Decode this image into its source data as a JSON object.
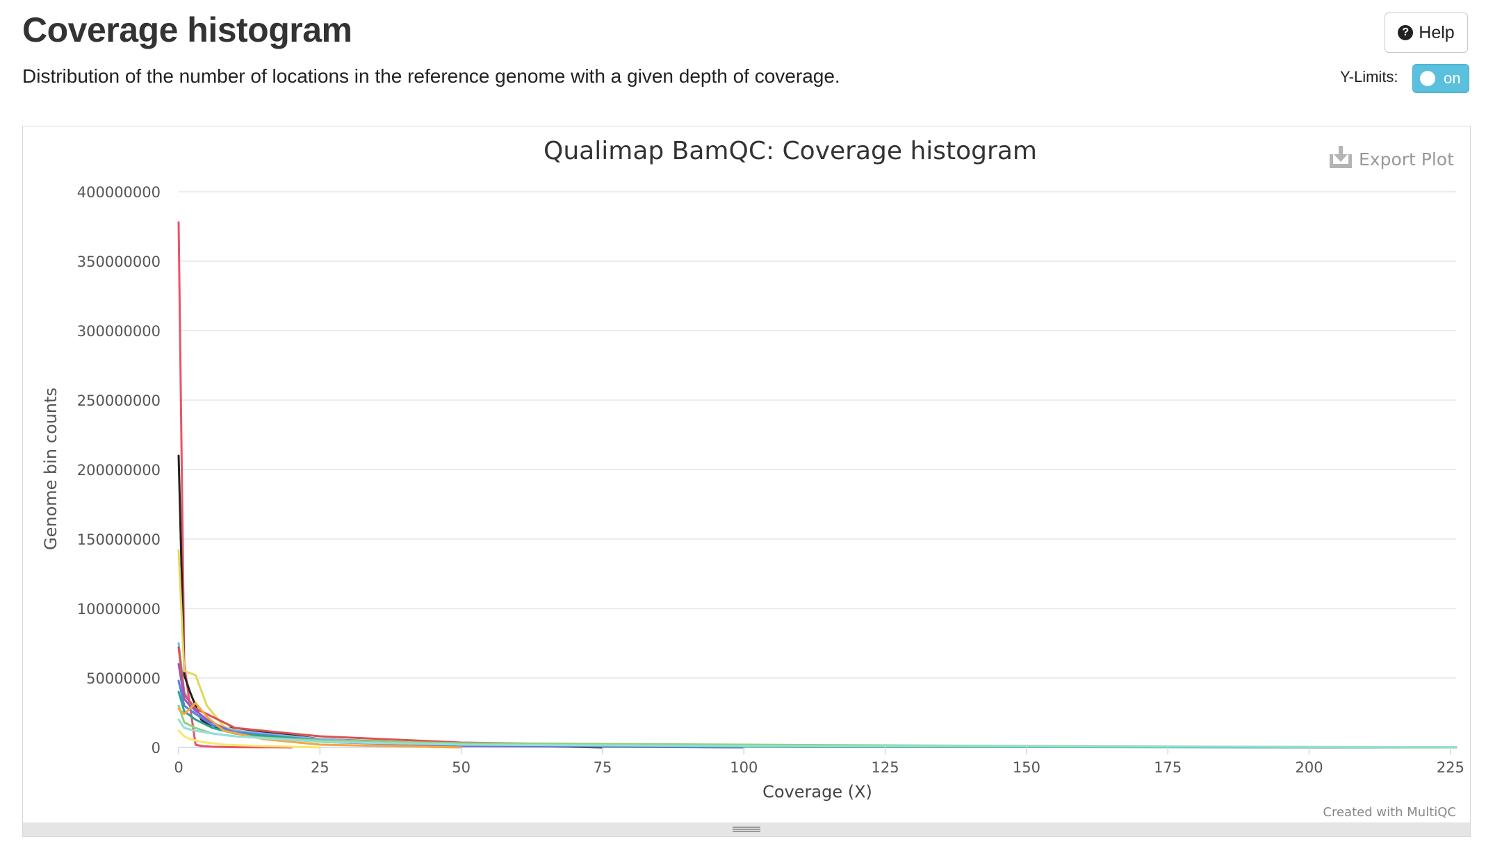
{
  "header": {
    "title": "Coverage histogram",
    "description": "Distribution of the number of locations in the reference genome with a given depth of coverage.",
    "help_label": "Help",
    "ylimits_label": "Y-Limits:",
    "ylimits_toggle": "on"
  },
  "plot": {
    "export_label": "Export Plot",
    "credit": "Created with MultiQC"
  },
  "colors": {
    "toggle": "#5bc0de",
    "grid": "#e6e6e6"
  },
  "chart_data": {
    "type": "line",
    "title": "Qualimap BamQC: Coverage histogram",
    "xlabel": "Coverage (X)",
    "ylabel": "Genome bin counts",
    "xlim": [
      0,
      226
    ],
    "ylim": [
      0,
      400000000
    ],
    "xticks": [
      0,
      25,
      50,
      75,
      100,
      125,
      150,
      175,
      200,
      225
    ],
    "yticks": [
      0,
      50000000,
      100000000,
      150000000,
      200000000,
      250000000,
      300000000,
      350000000,
      400000000
    ],
    "grid": true,
    "legend": "none",
    "series": [
      {
        "color": "#e8546a",
        "points": [
          [
            0,
            378000000
          ],
          [
            1,
            60000000
          ],
          [
            2,
            30000000
          ],
          [
            3,
            2000000
          ],
          [
            4,
            1000000
          ],
          [
            6,
            500000
          ],
          [
            10,
            200000
          ],
          [
            20,
            0
          ]
        ]
      },
      {
        "color": "#222222",
        "points": [
          [
            0,
            210000000
          ],
          [
            1,
            52000000
          ],
          [
            2,
            40000000
          ],
          [
            4,
            20000000
          ],
          [
            6,
            14000000
          ],
          [
            10,
            14000000
          ],
          [
            25,
            6000000
          ],
          [
            50,
            2000000
          ],
          [
            75,
            0
          ]
        ]
      },
      {
        "color": "#e3d65c",
        "points": [
          [
            0,
            142000000
          ],
          [
            1,
            55000000
          ],
          [
            3,
            52000000
          ],
          [
            5,
            30000000
          ],
          [
            8,
            15000000
          ],
          [
            15,
            6000000
          ],
          [
            25,
            2000000
          ],
          [
            50,
            0
          ]
        ]
      },
      {
        "color": "#7cb5ec",
        "points": [
          [
            0,
            75000000
          ],
          [
            1,
            40000000
          ],
          [
            3,
            25000000
          ],
          [
            6,
            16000000
          ],
          [
            10,
            12000000
          ],
          [
            25,
            6000000
          ],
          [
            50,
            1500000
          ],
          [
            100,
            500000
          ],
          [
            226,
            0
          ]
        ]
      },
      {
        "color": "#d9534f",
        "points": [
          [
            0,
            72000000
          ],
          [
            1,
            38000000
          ],
          [
            3,
            28000000
          ],
          [
            6,
            22000000
          ],
          [
            10,
            14000000
          ],
          [
            25,
            8000000
          ],
          [
            50,
            3500000
          ],
          [
            75,
            2000000
          ],
          [
            100,
            1000000
          ],
          [
            150,
            400000
          ],
          [
            226,
            0
          ]
        ]
      },
      {
        "color": "#9b59b6",
        "points": [
          [
            0,
            60000000
          ],
          [
            1,
            35000000
          ],
          [
            2,
            30000000
          ],
          [
            5,
            20000000
          ],
          [
            10,
            10000000
          ],
          [
            25,
            4000000
          ],
          [
            50,
            1000000
          ],
          [
            100,
            0
          ]
        ]
      },
      {
        "color": "#5b7ee0",
        "points": [
          [
            0,
            48000000
          ],
          [
            1,
            30000000
          ],
          [
            3,
            24000000
          ],
          [
            6,
            16000000
          ],
          [
            10,
            11000000
          ],
          [
            25,
            5000000
          ],
          [
            50,
            1500000
          ],
          [
            100,
            0
          ]
        ]
      },
      {
        "color": "#2ca58d",
        "points": [
          [
            0,
            40000000
          ],
          [
            1,
            26000000
          ],
          [
            3,
            20000000
          ],
          [
            6,
            14000000
          ],
          [
            10,
            10000000
          ],
          [
            25,
            5000000
          ],
          [
            50,
            2000000
          ],
          [
            100,
            500000
          ],
          [
            226,
            0
          ]
        ]
      },
      {
        "color": "#8fd27d",
        "points": [
          [
            0,
            30000000
          ],
          [
            1,
            18000000
          ],
          [
            3,
            14000000
          ],
          [
            6,
            10000000
          ],
          [
            10,
            8000000
          ],
          [
            25,
            5000000
          ],
          [
            50,
            3000000
          ],
          [
            75,
            2500000
          ],
          [
            100,
            2000000
          ],
          [
            150,
            1000000
          ],
          [
            200,
            300000
          ],
          [
            226,
            0
          ]
        ]
      },
      {
        "color": "#f4a742",
        "points": [
          [
            0,
            28000000
          ],
          [
            1,
            24000000
          ],
          [
            3,
            32000000
          ],
          [
            5,
            22000000
          ],
          [
            8,
            12000000
          ],
          [
            15,
            6000000
          ],
          [
            25,
            2000000
          ],
          [
            50,
            0
          ]
        ]
      },
      {
        "color": "#95ded8",
        "points": [
          [
            0,
            20000000
          ],
          [
            1,
            14000000
          ],
          [
            3,
            12000000
          ],
          [
            6,
            10000000
          ],
          [
            10,
            8000000
          ],
          [
            25,
            4000000
          ],
          [
            50,
            2000000
          ],
          [
            100,
            1000000
          ],
          [
            150,
            600000
          ],
          [
            226,
            300000
          ]
        ]
      },
      {
        "color": "#f7e96c",
        "points": [
          [
            0,
            12000000
          ],
          [
            1,
            8000000
          ],
          [
            2,
            6000000
          ],
          [
            4,
            4000000
          ],
          [
            8,
            2000000
          ],
          [
            15,
            1000000
          ],
          [
            25,
            0
          ]
        ]
      }
    ]
  }
}
